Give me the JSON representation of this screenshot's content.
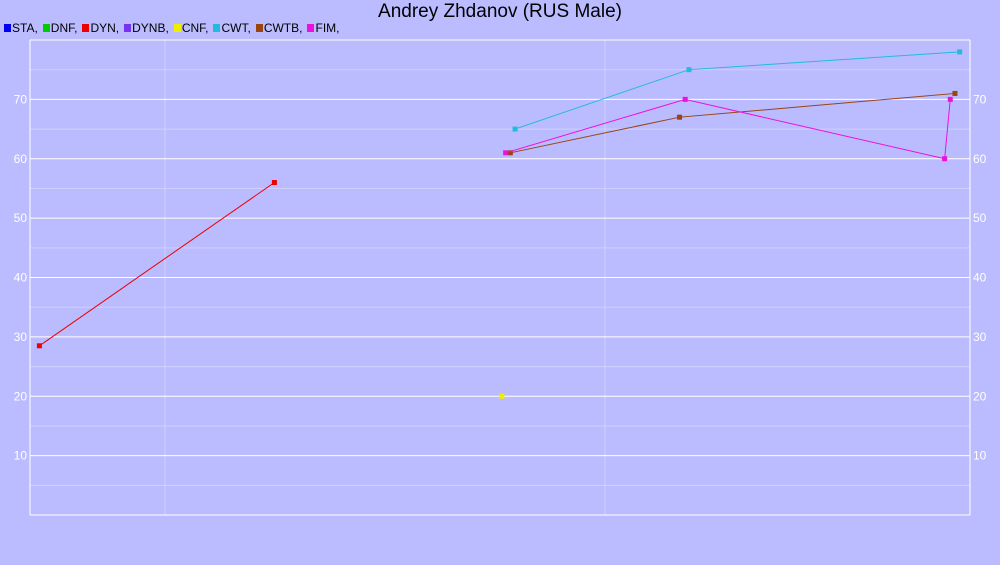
{
  "chart_data": {
    "type": "line",
    "title": "Andrey Zhdanov (RUS Male)",
    "xlabel": "",
    "ylabel": "",
    "ylim": [
      0,
      80
    ],
    "xlim": [
      0,
      1
    ],
    "yticks": [
      10,
      20,
      30,
      40,
      50,
      60,
      70
    ],
    "grid": true,
    "legend_position": "top-left",
    "series": [
      {
        "name": "STA",
        "color": "#0000ee",
        "points": []
      },
      {
        "name": "DNF",
        "color": "#00cc00",
        "points": []
      },
      {
        "name": "DYN",
        "color": "#ee0000",
        "points": [
          [
            0.01,
            28.5
          ],
          [
            0.26,
            56
          ]
        ]
      },
      {
        "name": "DYNB",
        "color": "#7733ee",
        "points": []
      },
      {
        "name": "CNF",
        "color": "#eeee00",
        "points": [
          [
            0.502,
            20
          ]
        ]
      },
      {
        "name": "CWT",
        "color": "#22bbdd",
        "points": [
          [
            0.516,
            65
          ],
          [
            0.701,
            75
          ],
          [
            0.989,
            78
          ]
        ]
      },
      {
        "name": "CWTB",
        "color": "#994411",
        "points": [
          [
            0.511,
            61
          ],
          [
            0.691,
            67
          ],
          [
            0.984,
            71
          ]
        ]
      },
      {
        "name": "FIM",
        "color": "#ee11dd",
        "points": [
          [
            0.506,
            61
          ],
          [
            0.697,
            70
          ],
          [
            0.973,
            60
          ],
          [
            0.979,
            70
          ]
        ]
      }
    ]
  }
}
